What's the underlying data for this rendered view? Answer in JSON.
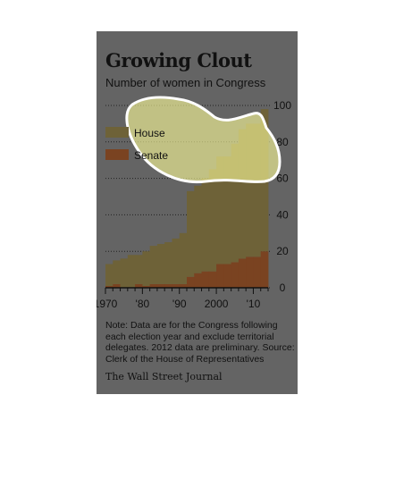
{
  "chart_data": {
    "type": "area",
    "title": "Growing Clout",
    "subtitle": "Number of women in Congress",
    "x": [
      1970,
      1972,
      1974,
      1976,
      1978,
      1980,
      1982,
      1984,
      1986,
      1988,
      1990,
      1992,
      1994,
      1996,
      1998,
      2000,
      2002,
      2004,
      2006,
      2008,
      2010,
      2012
    ],
    "series": [
      {
        "name": "House",
        "values": [
          12,
          13,
          16,
          18,
          16,
          19,
          21,
          22,
          23,
          25,
          28,
          47,
          48,
          51,
          56,
          59,
          59,
          65,
          71,
          73,
          73,
          78
        ],
        "color": "#6e6238"
      },
      {
        "name": "Senate",
        "values": [
          1,
          2,
          0,
          0,
          2,
          1,
          2,
          2,
          2,
          2,
          2,
          6,
          8,
          9,
          9,
          13,
          13,
          14,
          16,
          17,
          17,
          20
        ],
        "color": "#7a4321"
      }
    ],
    "stacked": true,
    "ylim": [
      0,
      100
    ],
    "yticks": [
      "0",
      "20",
      "40",
      "60",
      "80",
      "100"
    ],
    "xticks": [
      {
        "value": 1970,
        "label": "1970"
      },
      {
        "value": 1980,
        "label": "'80"
      },
      {
        "value": 1990,
        "label": "'90"
      },
      {
        "value": 2000,
        "label": "2000"
      },
      {
        "value": 2010,
        "label": "'10"
      }
    ],
    "legend": {
      "placement": "top-left",
      "entries": [
        "House",
        "Senate"
      ]
    },
    "grid": "horizontal dotted"
  },
  "note": "Note: Data are for the Congress following each election year and exclude territorial delegates. 2012 data are preliminary. Source: Clerk of the House of Representatives",
  "source": "The Wall Street Journal",
  "colors": {
    "panel_bg": "#646464",
    "house": "#6e6238",
    "senate": "#7a4321",
    "highlight": "#ffff99"
  }
}
